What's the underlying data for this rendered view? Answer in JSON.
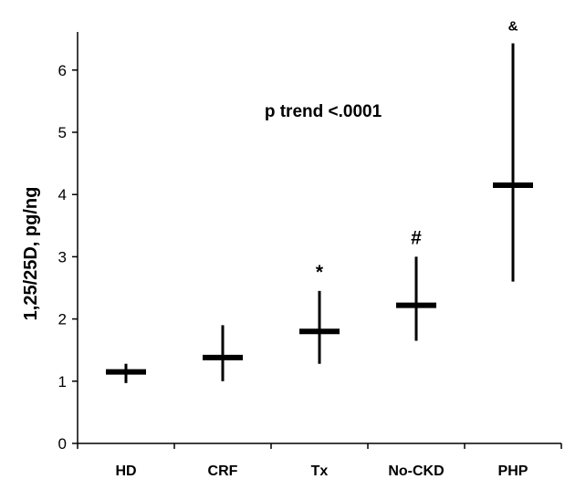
{
  "chart_data": {
    "type": "scatter",
    "ylabel": "1,25/25D, pg/ng",
    "ylim": [
      0,
      6.5
    ],
    "yticks": [
      0,
      1,
      2,
      3,
      4,
      5,
      6
    ],
    "categories": [
      "HD",
      "CRF",
      "Tx",
      "No-CKD",
      "PHP"
    ],
    "points": [
      {
        "category": "HD",
        "median": 1.15,
        "low": 0.97,
        "high": 1.28,
        "marker": ""
      },
      {
        "category": "CRF",
        "median": 1.38,
        "low": 1.0,
        "high": 1.9,
        "marker": ""
      },
      {
        "category": "Tx",
        "median": 1.8,
        "low": 1.28,
        "high": 2.45,
        "marker": "*"
      },
      {
        "category": "No-CKD",
        "median": 2.22,
        "low": 1.65,
        "high": 3.0,
        "marker": "#"
      },
      {
        "category": "PHP",
        "median": 4.15,
        "low": 2.6,
        "high": 6.43,
        "marker": "&"
      }
    ],
    "annotation": "p trend <.0001",
    "grid": false,
    "legend": "none",
    "colors": {
      "marks": "#000000",
      "axis": "#000000"
    }
  }
}
